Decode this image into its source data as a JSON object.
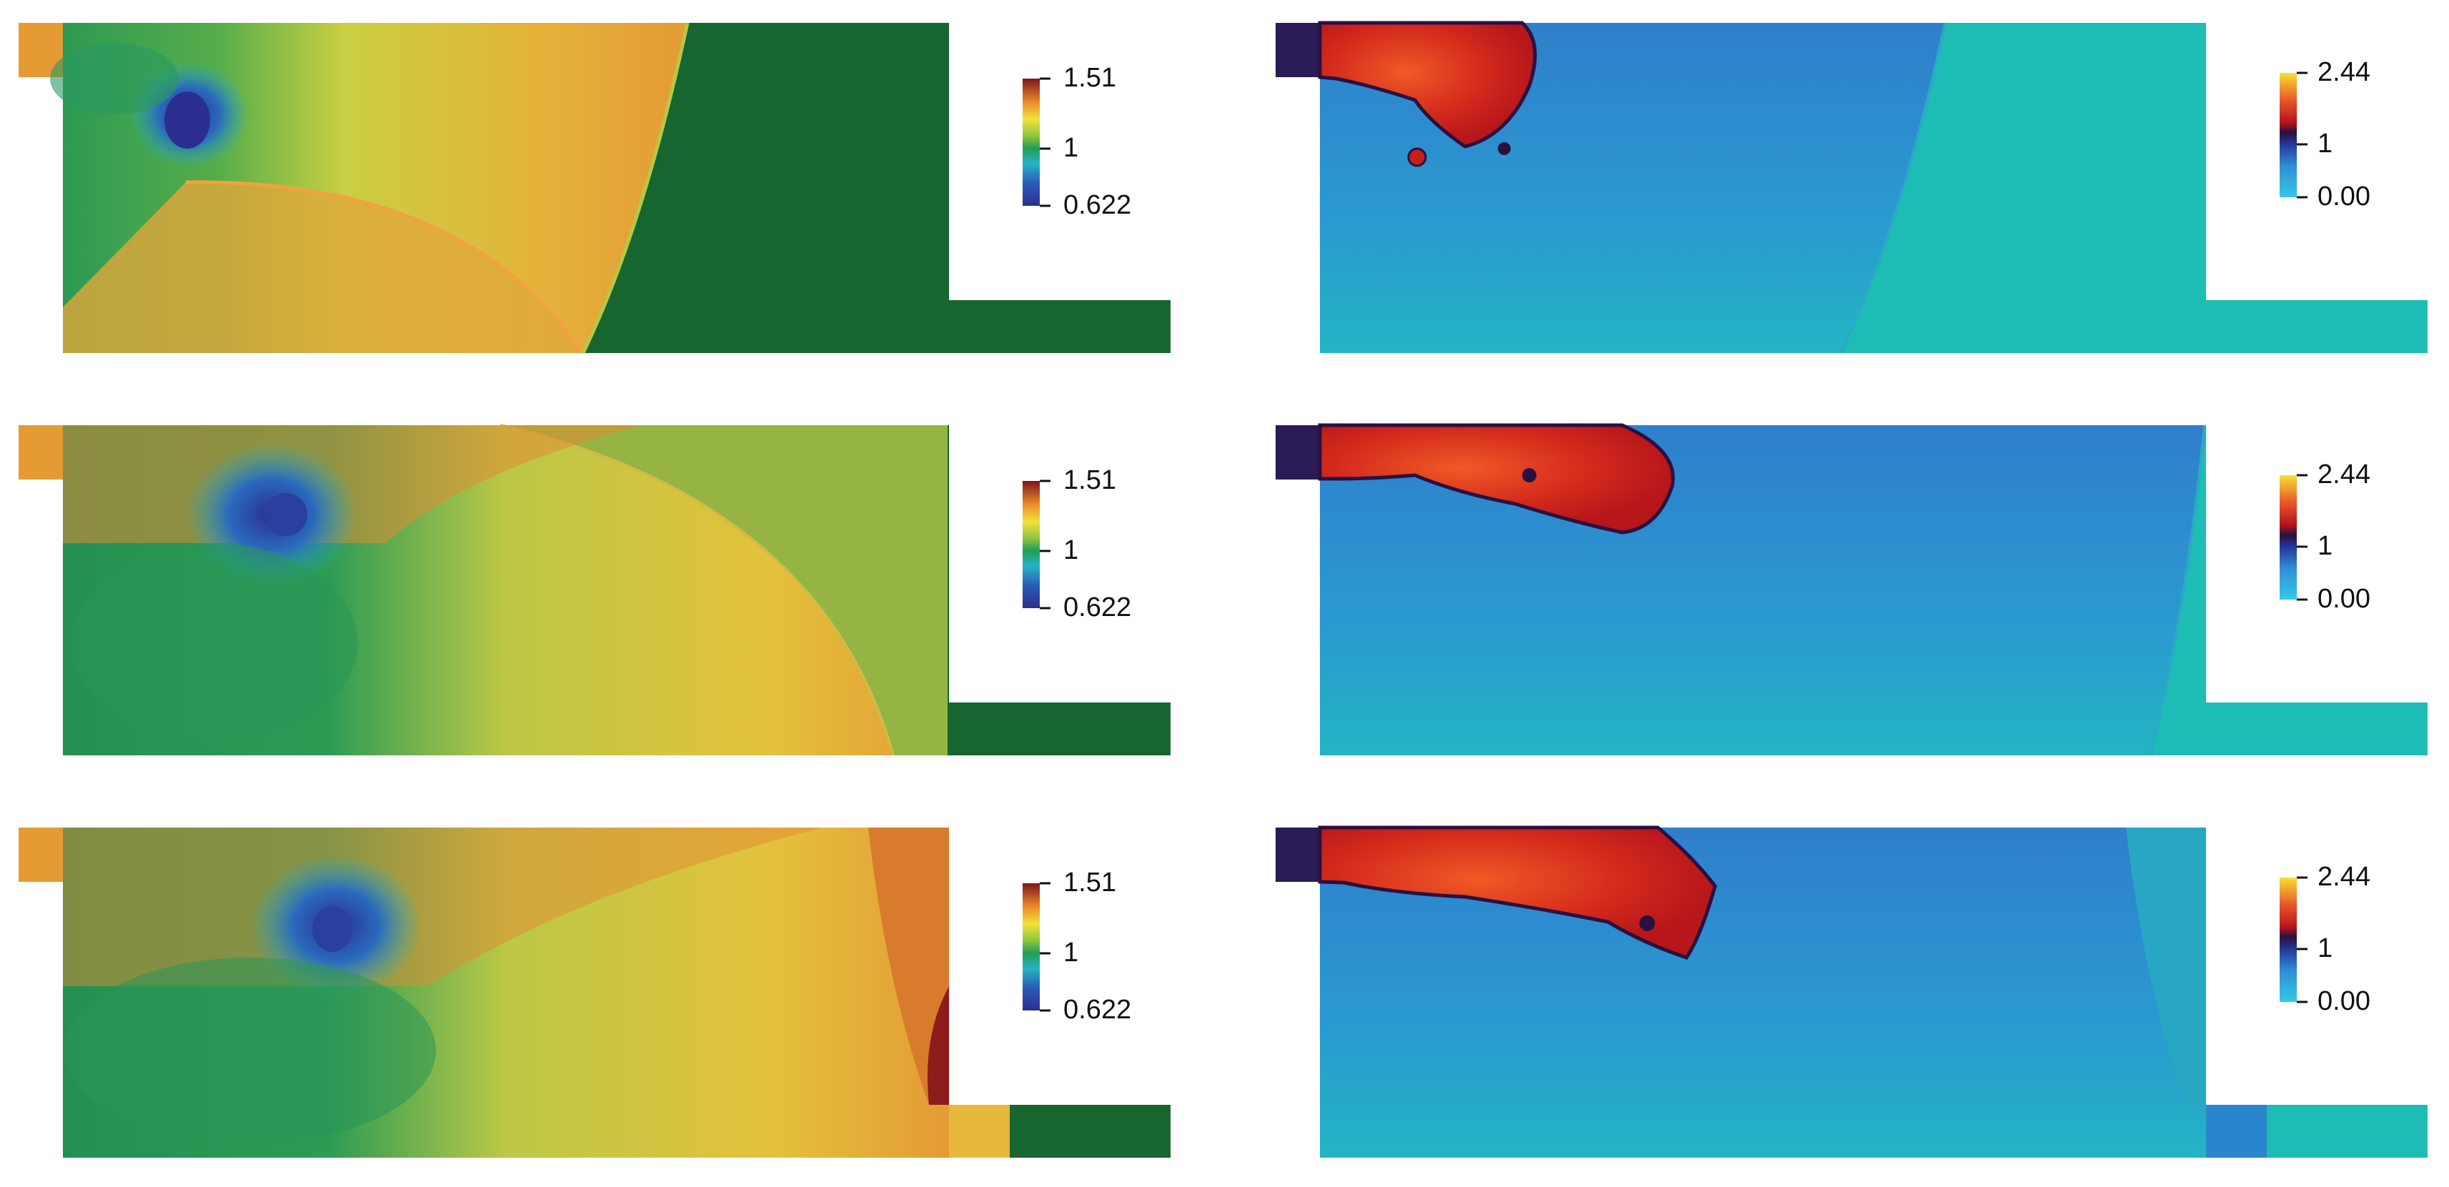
{
  "figure": {
    "colors": {
      "background": "#ffffff",
      "left_fill": "#e0a73a",
      "left_undisturbed": "#17652f",
      "right_fill": "#3b8fd0",
      "right_undisturbed": "#1dbdb5",
      "front_red": "#d22e1e"
    },
    "panels": [
      {
        "name": "left-row-1",
        "colorbar": {
          "max": "1.51",
          "mid": "1",
          "min": "0.622",
          "colormap": "rainbow-diverging"
        }
      },
      {
        "name": "right-row-1",
        "colorbar": {
          "max": "2.44",
          "mid": "1",
          "min": "0.00",
          "colormap": "cool-to-warm"
        }
      },
      {
        "name": "left-row-2",
        "colorbar": {
          "max": "1.51",
          "mid": "1",
          "min": "0.622",
          "colormap": "rainbow-diverging"
        }
      },
      {
        "name": "right-row-2",
        "colorbar": {
          "max": "2.44",
          "mid": "1",
          "min": "0.00",
          "colormap": "cool-to-warm"
        }
      },
      {
        "name": "left-row-3",
        "colorbar": {
          "max": "1.51",
          "mid": "1",
          "min": "0.622",
          "colormap": "rainbow-diverging"
        }
      },
      {
        "name": "right-row-3",
        "colorbar": {
          "max": "2.44",
          "mid": "1",
          "min": "0.00",
          "colormap": "cool-to-warm"
        }
      }
    ]
  }
}
